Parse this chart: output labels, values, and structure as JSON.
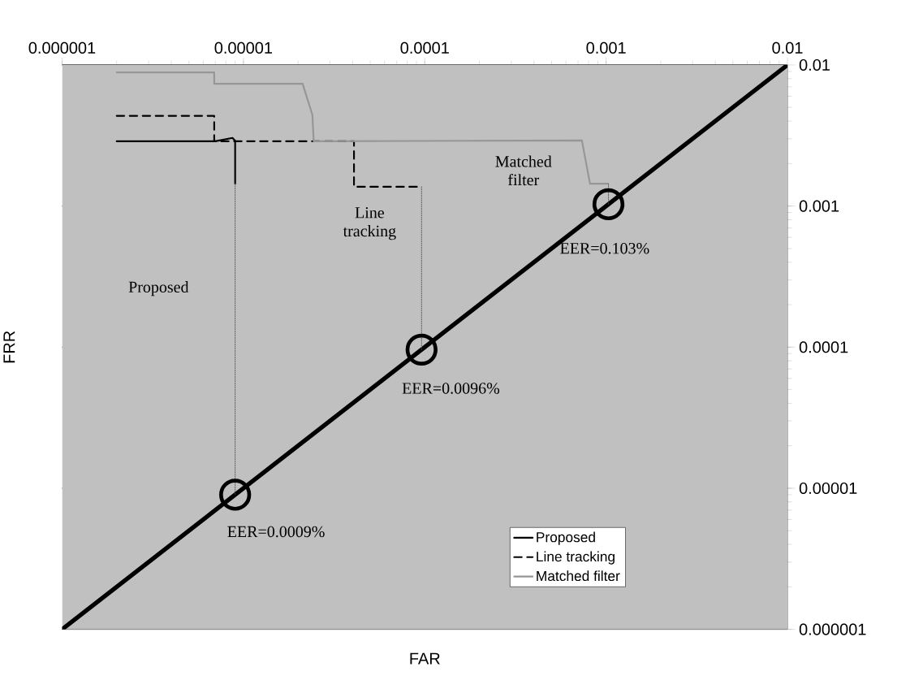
{
  "chart_data": {
    "type": "line",
    "xlabel": "FAR",
    "ylabel": "FRR",
    "log": "xy",
    "grid": "y",
    "legend": "bottom right",
    "xlim": [
      1e-06,
      0.01
    ],
    "ylim": [
      1e-06,
      0.01
    ],
    "xticks": [
      {
        "value": 1e-06,
        "label": "0.000001"
      },
      {
        "value": 1e-05,
        "label": "0.00001"
      },
      {
        "value": 0.0001,
        "label": "0.0001"
      },
      {
        "value": 0.001,
        "label": "0.001"
      },
      {
        "value": 0.01,
        "label": "0.01"
      }
    ],
    "yticks": [
      {
        "value": 1e-06,
        "label": "0.000001"
      },
      {
        "value": 1e-05,
        "label": "0.00001"
      },
      {
        "value": 0.0001,
        "label": "0.0001"
      },
      {
        "value": 0.001,
        "label": "0.001"
      },
      {
        "value": 0.01,
        "label": "0.01"
      }
    ],
    "series": [
      {
        "name": "Proposed",
        "color": "#000000",
        "line_style": "solid",
        "x": [
          2e-06,
          7e-06,
          8.7e-06,
          9e-06,
          9e-06
        ],
        "values": [
          0.00288,
          0.00288,
          0.00304,
          0.0029,
          0.00144
        ]
      },
      {
        "name": "Line tracking",
        "color": "#000000",
        "line_style": "dashed",
        "x": [
          2e-06,
          6.9e-06,
          6.9e-06,
          4.07e-05,
          4.07e-05,
          9.6e-05
        ],
        "values": [
          0.00436,
          0.00436,
          0.00288,
          0.00288,
          0.00137,
          0.00137
        ]
      },
      {
        "name": "Matched filter",
        "color": "#969696",
        "line_style": "solid",
        "x": [
          2e-06,
          6.9e-06,
          6.9e-06,
          2.12e-05,
          2.4e-05,
          2.44e-05,
          0.000735,
          0.000815,
          0.00102
        ],
        "values": [
          0.00885,
          0.00885,
          0.00736,
          0.00736,
          0.00443,
          0.00288,
          0.00292,
          0.00144,
          0.00144
        ]
      },
      {
        "color": "#000000",
        "line_style": "solid",
        "x": [
          1e-06,
          0.01
        ],
        "values": [
          1e-06,
          0.01
        ]
      },
      {
        "color": "#505050",
        "line_style": "dotted",
        "x": [
          9e-06,
          9e-06
        ],
        "values": [
          0.00144,
          9e-06
        ]
      },
      {
        "color": "#505050",
        "line_style": "dotted",
        "x": [
          9.6e-05,
          9.6e-05
        ],
        "values": [
          0.00137,
          9.6e-05
        ]
      },
      {
        "color": "#505050",
        "line_style": "dotted",
        "x": [
          0.00103,
          0.00103
        ],
        "values": [
          0.00144,
          0.00103
        ]
      },
      {
        "type": "scatter",
        "marker": "circle",
        "color": "#000000",
        "x": [
          9e-06,
          9.6e-05,
          0.00103
        ],
        "values": [
          9e-06,
          9.6e-05,
          0.00103
        ]
      }
    ],
    "annotations": [
      "Proposed",
      "Line tracking",
      "Matched filter",
      "EER=0.103%",
      "EER=0.0096%",
      "EER=0.0009%"
    ]
  }
}
